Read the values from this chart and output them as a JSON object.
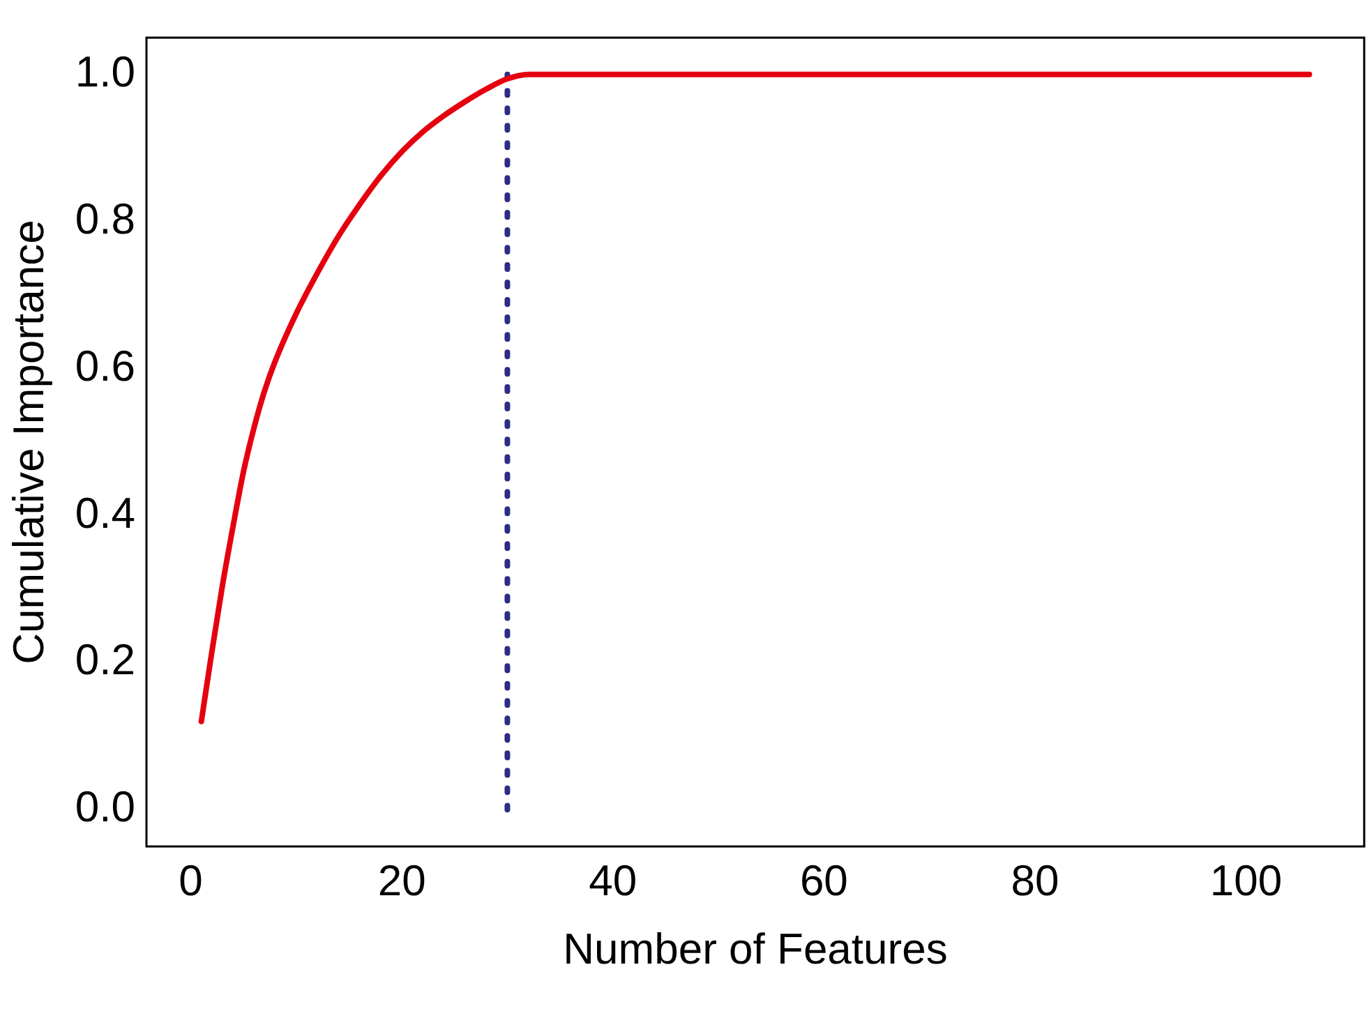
{
  "chart_data": {
    "type": "line",
    "xlabel": "Number of Features",
    "ylabel": "Cumulative Importance",
    "series": [
      {
        "color": "#e5000f",
        "x": [
          1,
          2,
          3,
          4,
          5,
          6,
          7,
          8,
          10,
          12,
          14,
          16,
          18,
          20,
          22,
          24,
          26,
          28,
          30,
          32,
          45,
          106
        ],
        "values": [
          0.12,
          0.215,
          0.305,
          0.385,
          0.46,
          0.52,
          0.57,
          0.61,
          0.675,
          0.73,
          0.78,
          0.823,
          0.862,
          0.895,
          0.922,
          0.944,
          0.963,
          0.98,
          0.994,
          1.0,
          1.0,
          1.0
        ]
      },
      {
        "color": "#2b2d85",
        "x": [
          30,
          30
        ],
        "values": [
          0,
          1.0
        ],
        "line_style": "dotted"
      }
    ],
    "xlim": [
      -4.2,
      111.2
    ],
    "ylim": [
      -0.05,
      1.05
    ],
    "xticks": [
      0,
      20,
      40,
      60,
      80,
      100
    ],
    "yticks": [
      {
        "value": 0,
        "label": "0.0"
      },
      {
        "value": 0.2,
        "label": "0.2"
      },
      {
        "value": 0.4,
        "label": "0.4"
      },
      {
        "value": 0.6,
        "label": "0.6"
      },
      {
        "value": 0.8,
        "label": "0.8"
      },
      {
        "value": 1.0,
        "label": "1.0"
      }
    ],
    "grid": false,
    "legend": false,
    "marker": "none",
    "line_style": "solid"
  }
}
